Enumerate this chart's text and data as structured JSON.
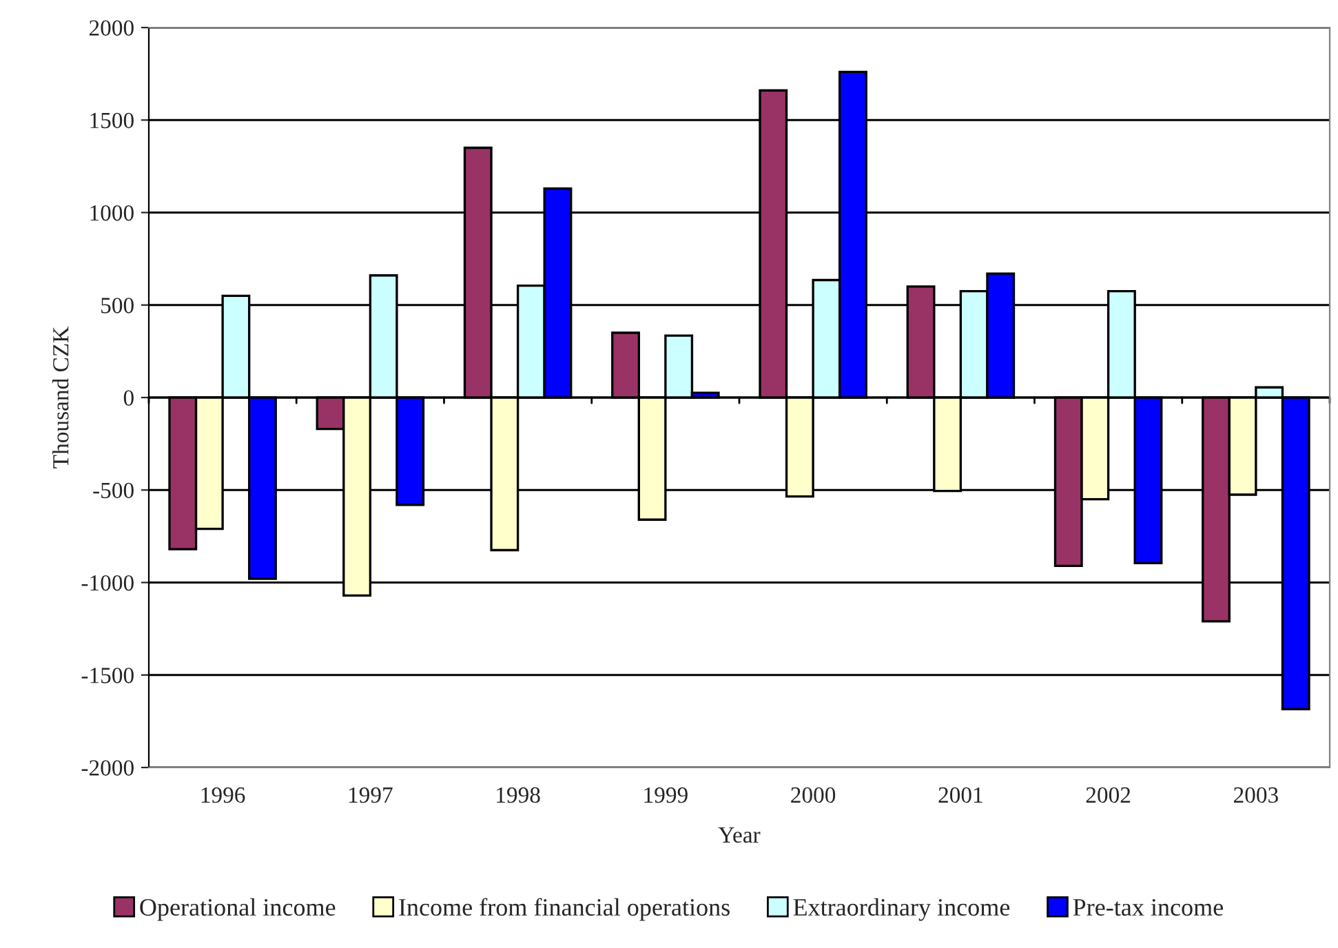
{
  "chart_data": {
    "type": "bar",
    "xlabel": "Year",
    "ylabel": "Thousand CZK",
    "categories": [
      "1996",
      "1997",
      "1998",
      "1999",
      "2000",
      "2001",
      "2002",
      "2003"
    ],
    "series": [
      {
        "name": "Operational income",
        "color": "#993366",
        "values": [
          -820,
          -170,
          1350,
          350,
          1660,
          600,
          -910,
          -1210
        ]
      },
      {
        "name": "Income from financial operations",
        "color": "#ffffcc",
        "values": [
          -710,
          -1070,
          -825,
          -660,
          -535,
          -505,
          -550,
          -525
        ]
      },
      {
        "name": "Extraordinary income",
        "color": "#ccffff",
        "values": [
          550,
          660,
          605,
          335,
          635,
          575,
          575,
          55
        ]
      },
      {
        "name": "Pre-tax income",
        "color": "#0000ff",
        "values": [
          -980,
          -580,
          1130,
          25,
          1760,
          670,
          -895,
          -1685
        ]
      }
    ],
    "ylim": [
      -2000,
      2000
    ],
    "yticks": [
      -2000,
      -1500,
      -1000,
      -500,
      0,
      500,
      1000,
      1500,
      2000
    ],
    "grid": "y",
    "legend": "bottom"
  }
}
